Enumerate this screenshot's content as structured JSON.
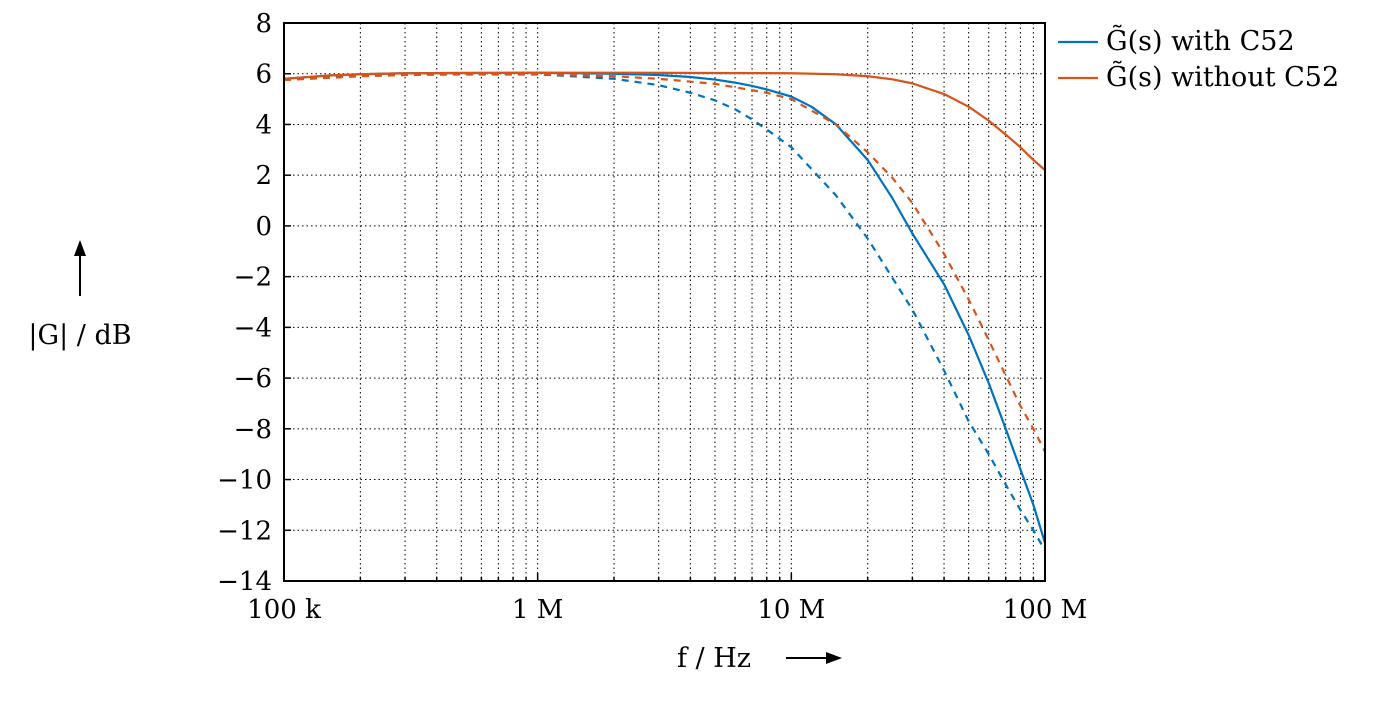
{
  "chart_data": {
    "type": "line",
    "x_scale": "log",
    "grid": true,
    "legend_position": "top-right, outside plot",
    "xlabel": "f / Hz",
    "ylabel": "|G| / dB",
    "xlim": [
      100000,
      100000000
    ],
    "ylim": [
      -14,
      8
    ],
    "x_ticks": [
      {
        "value": 100000,
        "label": "100 k"
      },
      {
        "value": 1000000,
        "label": "1 M"
      },
      {
        "value": 10000000,
        "label": "10 M"
      },
      {
        "value": 100000000,
        "label": "100 M"
      }
    ],
    "y_ticks": [
      8,
      6,
      4,
      2,
      0,
      -2,
      -4,
      -6,
      -8,
      -10,
      -12,
      -14
    ],
    "y_tick_labels": [
      "8",
      "6",
      "4",
      "2",
      "0",
      "−2",
      "−4",
      "−6",
      "−8",
      "−10",
      "−12",
      "−14"
    ],
    "series": [
      {
        "name": "G̃(s) with C52",
        "color": "#0072bd",
        "dash": "solid",
        "x": [
          100000,
          150000,
          200000,
          300000,
          500000,
          1000000,
          2000000,
          3000000,
          4000000,
          5000000,
          6000000,
          7000000,
          8000000,
          10000000,
          12000000,
          15000000,
          20000000,
          25000000,
          30000000,
          40000000,
          50000000,
          60000000,
          70000000,
          80000000,
          90000000,
          100000000
        ],
        "y": [
          5.8,
          5.93,
          5.98,
          6.02,
          6.03,
          6.04,
          6.0,
          5.95,
          5.87,
          5.77,
          5.65,
          5.52,
          5.38,
          5.1,
          4.7,
          4.0,
          2.6,
          1.1,
          -0.3,
          -2.3,
          -4.3,
          -6.2,
          -8.0,
          -9.6,
          -11.0,
          -12.5
        ]
      },
      {
        "name": "",
        "color": "#0072bd",
        "dash": "dashed",
        "x": [
          100000,
          200000,
          300000,
          500000,
          1000000,
          2000000,
          3000000,
          4000000,
          5000000,
          6000000,
          7000000,
          8000000,
          10000000,
          15000000,
          20000000,
          30000000,
          40000000,
          50000000,
          60000000,
          70000000,
          80000000,
          90000000,
          100000000
        ],
        "y": [
          5.8,
          5.95,
          5.98,
          6.0,
          5.98,
          5.8,
          5.55,
          5.25,
          4.95,
          4.6,
          4.2,
          3.8,
          3.1,
          1.2,
          -0.5,
          -3.3,
          -5.7,
          -7.7,
          -9.0,
          -10.2,
          -11.2,
          -12.0,
          -12.8
        ]
      },
      {
        "name": "G̃(s) without C52",
        "color": "#d95319",
        "dash": "solid",
        "x": [
          100000,
          150000,
          200000,
          300000,
          500000,
          1000000,
          2000000,
          5000000,
          10000000,
          15000000,
          20000000,
          25000000,
          30000000,
          40000000,
          50000000,
          60000000,
          70000000,
          80000000,
          90000000,
          100000000
        ],
        "y": [
          5.8,
          5.93,
          5.98,
          6.02,
          6.03,
          6.04,
          6.04,
          6.03,
          6.02,
          5.98,
          5.9,
          5.78,
          5.62,
          5.2,
          4.7,
          4.15,
          3.6,
          3.1,
          2.6,
          2.2
        ]
      },
      {
        "name": "",
        "color": "#d95319",
        "dash": "dashed",
        "x": [
          100000,
          200000,
          300000,
          500000,
          1000000,
          2000000,
          3000000,
          5000000,
          8000000,
          10000000,
          15000000,
          20000000,
          25000000,
          30000000,
          40000000,
          50000000,
          60000000,
          70000000,
          80000000,
          90000000,
          100000000
        ],
        "y": [
          5.75,
          5.9,
          5.95,
          5.97,
          5.97,
          5.9,
          5.8,
          5.6,
          5.25,
          5.0,
          4.0,
          2.9,
          1.9,
          0.9,
          -1.1,
          -2.9,
          -4.5,
          -5.9,
          -7.1,
          -8.0,
          -8.9
        ]
      }
    ]
  }
}
